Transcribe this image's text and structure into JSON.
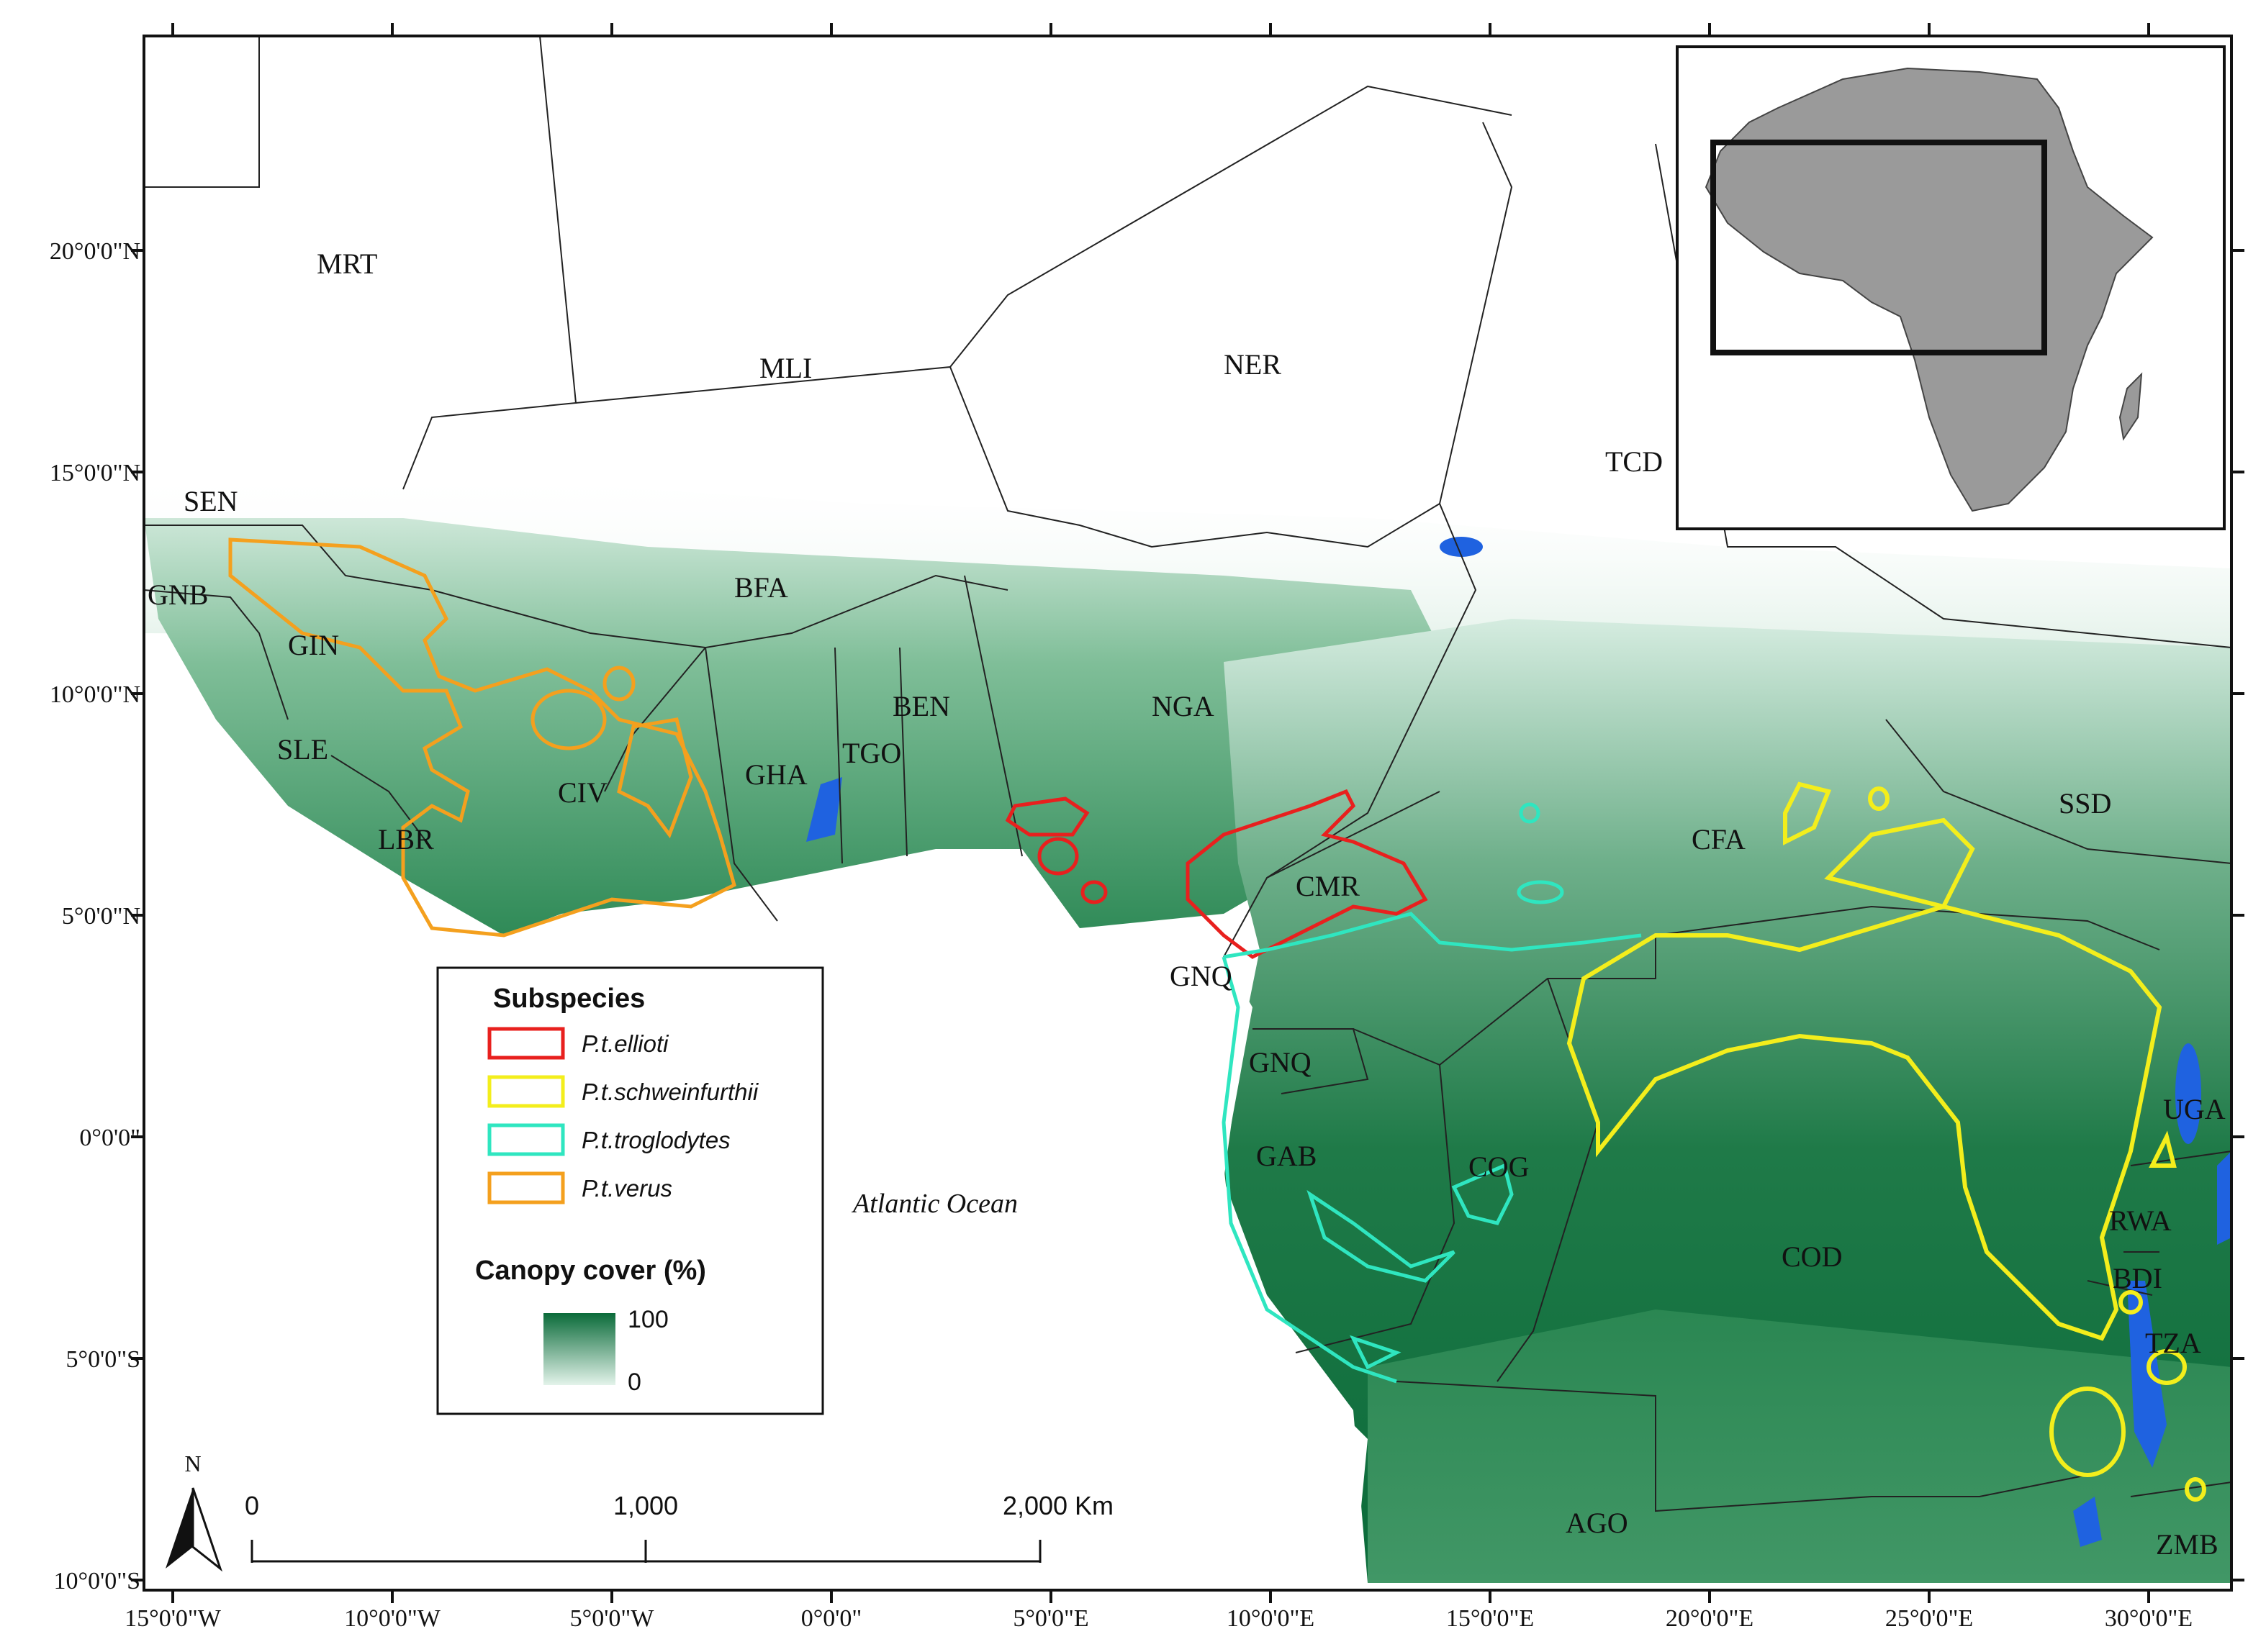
{
  "map": {
    "longitude_labels": [
      "15°0'0\"W",
      "10°0'0\"W",
      "5°0'0\"W",
      "0°0'0\"",
      "5°0'0\"E",
      "10°0'0\"E",
      "15°0'0\"E",
      "20°0'0\"E",
      "25°0'0\"E",
      "30°0'0\"E"
    ],
    "latitude_labels": [
      "20°0'0\"N",
      "15°0'0\"N",
      "10°0'0\"N",
      "5°0'0\"N",
      "0°0'0\"",
      "5°0'0\"S",
      "10°0'0\"S"
    ],
    "countries": [
      "MRT",
      "MLI",
      "NER",
      "TCD",
      "SEN",
      "GNB",
      "GIN",
      "SLE",
      "LBR",
      "CIV",
      "BFA",
      "GHA",
      "TGO",
      "BEN",
      "NGA",
      "CMR",
      "GNQ",
      "GNQ",
      "GAB",
      "COG",
      "CFA",
      "SSD",
      "COD",
      "UGA",
      "RWA",
      "BDI",
      "TZA",
      "AGO",
      "ZMB"
    ],
    "ocean_label": "Atlantic Ocean",
    "north_label": "N",
    "scale_labels": [
      "0",
      "1,000",
      "2,000 Km"
    ]
  },
  "legend": {
    "title": "Subspecies",
    "items": [
      {
        "label": "P.t.ellioti",
        "color": "#e8201e"
      },
      {
        "label": "P.t.schweinfurthii",
        "color": "#f3ee1c"
      },
      {
        "label": "P.t.troglodytes",
        "color": "#2fe6c0"
      },
      {
        "label": "P.t.verus",
        "color": "#f4a01e"
      }
    ],
    "canopy_title": "Canopy cover (%)",
    "canopy_max": "100",
    "canopy_min": "0"
  },
  "colors": {
    "forest_dark": "#0b6b3a",
    "forest_mid": "#3f9a6a",
    "forest_light": "#cfe9dc",
    "water": "#1f62e0"
  }
}
